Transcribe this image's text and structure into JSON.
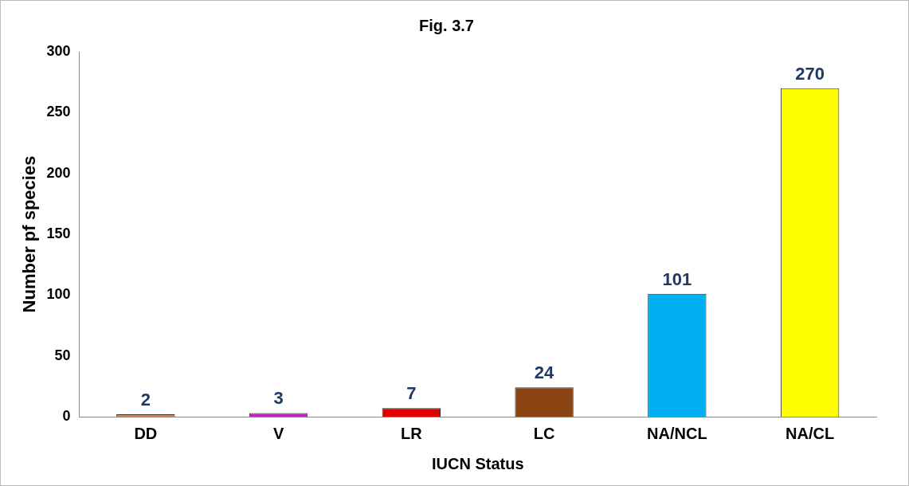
{
  "chart_data": {
    "type": "bar",
    "title": "Fig. 3.7",
    "xlabel": "IUCN Status",
    "ylabel": "Number pf species",
    "categories": [
      "DD",
      "V",
      "LR",
      "LC",
      "NA/NCL",
      "NA/CL"
    ],
    "values": [
      2,
      3,
      7,
      24,
      101,
      270
    ],
    "colors": [
      "#d98b4f",
      "#c026c0",
      "#e00000",
      "#8b4513",
      "#00b0f0",
      "#ffff00"
    ],
    "ylim": [
      0,
      300
    ],
    "yticks": [
      0,
      50,
      100,
      150,
      200,
      250,
      300
    ],
    "grid": false,
    "legend": false,
    "data_labels": true
  }
}
